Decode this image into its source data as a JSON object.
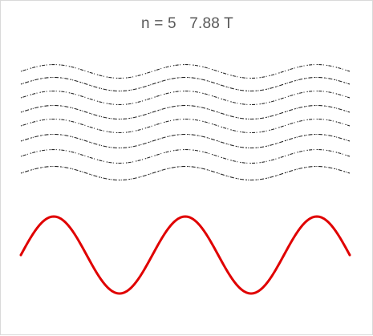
{
  "chart_data": {
    "type": "line",
    "title": "n = 5   7.88 T",
    "xlabel": "",
    "ylabel": "",
    "grid": false,
    "legend": "none",
    "x_range": [
      0,
      2.5
    ],
    "series": [
      {
        "role": "reference-wave",
        "style": "solid",
        "color": "#e00000",
        "x_range": [
          0,
          2.5
        ],
        "cycles": 2.5,
        "amplitude": 1.0,
        "phase": 0.0
      },
      {
        "role": "stacked-trace",
        "style": "dotted",
        "color": "#000000",
        "x_range": [
          0,
          2.5
        ],
        "cycles": 2.5,
        "amplitude": 1.0,
        "phase": 0.0
      },
      {
        "role": "stacked-trace",
        "style": "dotted",
        "color": "#000000",
        "x_range": [
          0,
          2.5
        ],
        "cycles": 2.5,
        "amplitude": 1.0,
        "phase": 0.0
      },
      {
        "role": "stacked-trace",
        "style": "dotted",
        "color": "#000000",
        "x_range": [
          0,
          2.5
        ],
        "cycles": 2.5,
        "amplitude": 1.0,
        "phase": 0.0
      },
      {
        "role": "stacked-trace",
        "style": "dotted",
        "color": "#000000",
        "x_range": [
          0,
          2.5
        ],
        "cycles": 2.5,
        "amplitude": 1.0,
        "phase": 0.0
      },
      {
        "role": "stacked-trace",
        "style": "dotted",
        "color": "#000000",
        "x_range": [
          0,
          2.5
        ],
        "cycles": 2.5,
        "amplitude": 1.0,
        "phase": 0.0
      },
      {
        "role": "stacked-trace",
        "style": "dotted",
        "color": "#000000",
        "x_range": [
          0,
          2.5
        ],
        "cycles": 2.5,
        "amplitude": 1.0,
        "phase": 0.0
      },
      {
        "role": "stacked-trace",
        "style": "dotted",
        "color": "#000000",
        "x_range": [
          0,
          2.5
        ],
        "cycles": 2.5,
        "amplitude": 1.0,
        "phase": 0.0
      },
      {
        "role": "stacked-trace",
        "style": "dotted",
        "color": "#000000",
        "x_range": [
          0,
          2.5
        ],
        "cycles": 2.5,
        "amplitude": 1.0,
        "phase": 0.0
      }
    ]
  }
}
